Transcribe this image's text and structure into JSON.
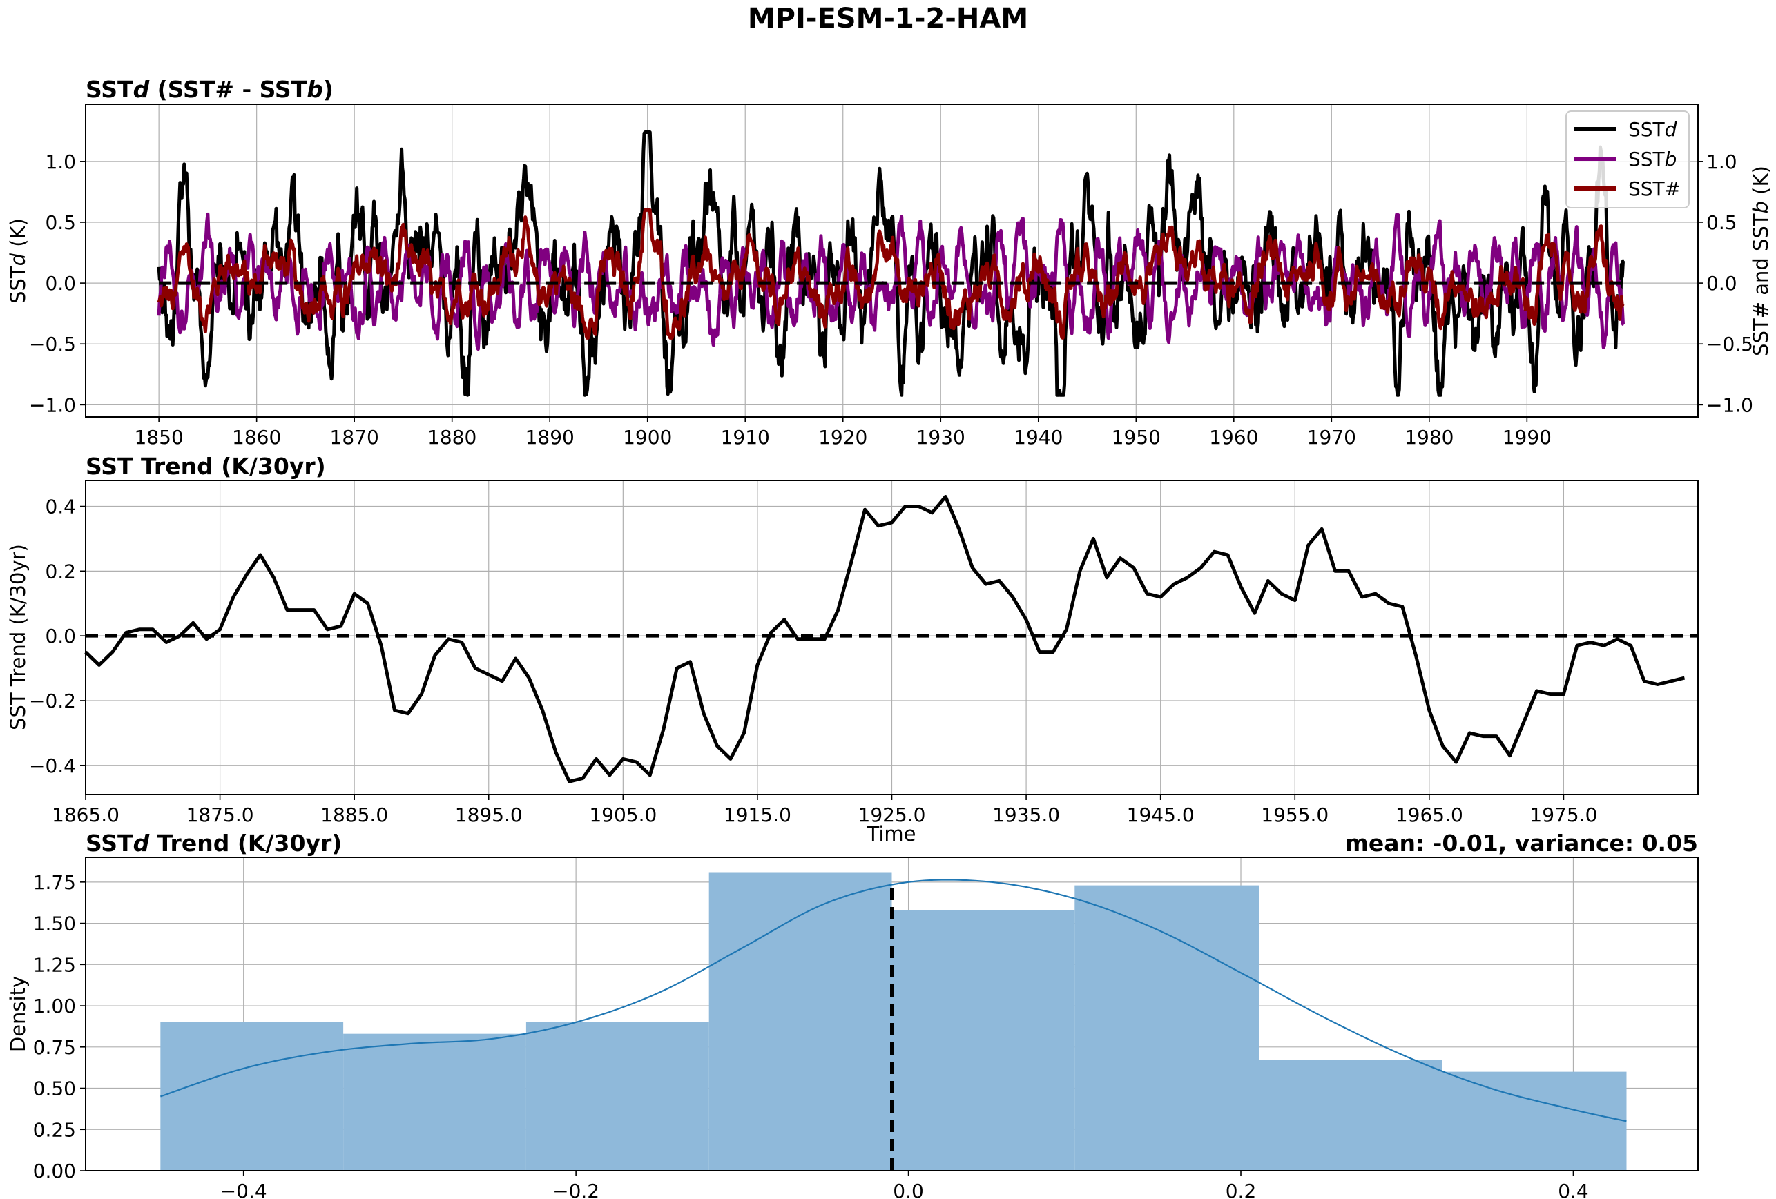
{
  "figure": {
    "title": "MPI-ESM-1-2-HAM"
  },
  "chart_data": [
    {
      "type": "line",
      "title": "SSTd (SST# - SSTb)",
      "title_parts": {
        "a": "SST",
        "b": "d",
        "c": " (SST# - SST",
        "d": "b",
        "e": ")"
      },
      "ylabel": "SSTd (K)",
      "ylabel_parts": {
        "a": "SST",
        "b": "d",
        "c": " (K)"
      },
      "ylabel_right": "SST# and SSTb (K)",
      "ylabel_right_parts": {
        "a": "SST# and SST",
        "b": "b",
        "c": " (K)"
      },
      "xlim": [
        1842.5,
        2007.5
      ],
      "ylim": [
        -1.1,
        1.47
      ],
      "xticks": [
        1850,
        1860,
        1870,
        1880,
        1890,
        1900,
        1910,
        1920,
        1930,
        1940,
        1950,
        1960,
        1970,
        1980,
        1990
      ],
      "yticks": [
        -1.0,
        -0.5,
        0.0,
        0.5,
        1.0
      ],
      "ytick_labels": [
        "−1.0",
        "−0.5",
        "0.0",
        "0.5",
        "1.0"
      ],
      "legend": {
        "placement": "top-right",
        "entries": [
          {
            "text": "SST",
            "italic": "d",
            "suffix": "",
            "color": "#000000"
          },
          {
            "text": "SST",
            "italic": "b",
            "suffix": "",
            "color": "#800080"
          },
          {
            "text": "SST#",
            "italic": "",
            "suffix": "",
            "color": "#8b0000"
          }
        ]
      },
      "x_start": 1850,
      "x_end": 1999.9,
      "series_note": "monthly series from 1850 to 2000",
      "peaks": [
        {
          "x": 1852.8,
          "y": 0.8
        },
        {
          "x": 1859.4,
          "y": 0.18
        },
        {
          "x": 1861.2,
          "y": 0.5
        },
        {
          "x": 1863.5,
          "y": 0.8
        },
        {
          "x": 1874.8,
          "y": 0.85
        },
        {
          "x": 1877.2,
          "y": 0.5
        },
        {
          "x": 1887.4,
          "y": 1.15
        },
        {
          "x": 1899.8,
          "y": 1.23
        },
        {
          "x": 1906.0,
          "y": 0.84
        },
        {
          "x": 1923.9,
          "y": 1.15
        },
        {
          "x": 1945.3,
          "y": 0.58
        },
        {
          "x": 1956.3,
          "y": 1.18
        },
        {
          "x": 1970.8,
          "y": 1.05
        },
        {
          "x": 1997.3,
          "y": 0.7
        }
      ],
      "troughs": [
        {
          "x": 1851.6,
          "y": -0.64
        },
        {
          "x": 1867.6,
          "y": -0.68
        },
        {
          "x": 1881.6,
          "y": -0.67
        },
        {
          "x": 1894.7,
          "y": -0.84
        },
        {
          "x": 1902.3,
          "y": -0.9
        },
        {
          "x": 1913.5,
          "y": -0.75
        },
        {
          "x": 1926.0,
          "y": -0.72
        },
        {
          "x": 1938.8,
          "y": -0.8
        },
        {
          "x": 1942.3,
          "y": -0.9
        },
        {
          "x": 1981.2,
          "y": -0.72
        },
        {
          "x": 1990.8,
          "y": -0.6
        }
      ]
    },
    {
      "type": "line",
      "title": "SST Trend (K/30yr)",
      "ylabel": "SST Trend (K/30yr)",
      "xlabel": "Time",
      "xlim": [
        1865.0,
        1985.0
      ],
      "ylim": [
        -0.49,
        0.48
      ],
      "xticks": [
        1865,
        1875,
        1885,
        1895,
        1905,
        1915,
        1925,
        1935,
        1945,
        1955,
        1965,
        1975
      ],
      "xtick_labels": [
        "1865.0",
        "1875.0",
        "1885.0",
        "1895.0",
        "1905.0",
        "1915.0",
        "1925.0",
        "1935.0",
        "1945.0",
        "1955.0",
        "1965.0",
        "1975.0"
      ],
      "yticks": [
        -0.4,
        -0.2,
        0.0,
        0.2,
        0.4
      ],
      "ytick_labels": [
        "−0.4",
        "−0.2",
        "0.0",
        "0.2",
        "0.4"
      ],
      "x": [
        1865,
        1866,
        1867,
        1868,
        1869,
        1870,
        1871,
        1872,
        1873,
        1874,
        1875,
        1876,
        1877,
        1878,
        1879,
        1880,
        1881,
        1882,
        1883,
        1884,
        1885,
        1886,
        1887,
        1888,
        1889,
        1890,
        1891,
        1892,
        1893,
        1894,
        1895,
        1896,
        1897,
        1898,
        1899,
        1900,
        1901,
        1902,
        1903,
        1904,
        1905,
        1906,
        1907,
        1908,
        1909,
        1910,
        1911,
        1912,
        1913,
        1914,
        1915,
        1916,
        1917,
        1918,
        1919,
        1920,
        1921,
        1922,
        1923,
        1924,
        1925,
        1926,
        1927,
        1928,
        1929,
        1930,
        1931,
        1932,
        1933,
        1934,
        1935,
        1936,
        1937,
        1938,
        1939,
        1940,
        1941,
        1942,
        1943,
        1944,
        1945,
        1946,
        1947,
        1948,
        1949,
        1950,
        1951,
        1952,
        1953,
        1954,
        1955,
        1956,
        1957,
        1958,
        1959,
        1960,
        1961,
        1962,
        1963,
        1964,
        1965,
        1966,
        1967,
        1968,
        1969,
        1970,
        1971,
        1972,
        1973,
        1974,
        1975,
        1976,
        1977,
        1978,
        1979,
        1980,
        1981,
        1982,
        1983,
        1984
      ],
      "values": [
        -0.05,
        -0.09,
        -0.05,
        0.01,
        0.02,
        0.02,
        -0.02,
        0.0,
        0.04,
        -0.01,
        0.02,
        0.12,
        0.19,
        0.25,
        0.18,
        0.08,
        0.08,
        0.08,
        0.02,
        0.03,
        0.13,
        0.1,
        -0.03,
        -0.23,
        -0.24,
        -0.18,
        -0.06,
        -0.01,
        -0.02,
        -0.1,
        -0.12,
        -0.14,
        -0.07,
        -0.13,
        -0.23,
        -0.36,
        -0.45,
        -0.44,
        -0.38,
        -0.43,
        -0.38,
        -0.39,
        -0.43,
        -0.29,
        -0.1,
        -0.08,
        -0.24,
        -0.34,
        -0.38,
        -0.3,
        -0.09,
        0.01,
        0.05,
        -0.01,
        -0.01,
        -0.01,
        0.08,
        0.23,
        0.39,
        0.34,
        0.35,
        0.4,
        0.4,
        0.38,
        0.43,
        0.33,
        0.21,
        0.16,
        0.17,
        0.12,
        0.05,
        -0.05,
        -0.05,
        0.02,
        0.2,
        0.3,
        0.18,
        0.24,
        0.21,
        0.13,
        0.12,
        0.16,
        0.18,
        0.21,
        0.26,
        0.25,
        0.15,
        0.07,
        0.17,
        0.13,
        0.11,
        0.28,
        0.33,
        0.2,
        0.2,
        0.12,
        0.13,
        0.1,
        0.09,
        -0.06,
        -0.23,
        -0.34,
        -0.39,
        -0.3,
        -0.31,
        -0.31,
        -0.37,
        -0.27,
        -0.17,
        -0.18,
        -0.18,
        -0.03,
        -0.02,
        -0.03,
        -0.01,
        -0.03,
        -0.14,
        -0.15,
        -0.14,
        -0.13
      ]
    },
    {
      "type": "histogram",
      "title": "SSTd Trend (K/30yr)",
      "title_parts": {
        "a": "SST",
        "b": "d",
        "c": " Trend (K/30yr)"
      },
      "subtitle_right": "mean: -0.01, variance: 0.05",
      "ylabel": "Density",
      "xlim": [
        -0.495,
        0.475
      ],
      "ylim": [
        0.0,
        1.9
      ],
      "xticks": [
        -0.4,
        -0.2,
        0.0,
        0.2,
        0.4
      ],
      "xtick_labels": [
        "−0.4",
        "−0.2",
        "0.0",
        "0.2",
        "0.4"
      ],
      "yticks": [
        0.0,
        0.25,
        0.5,
        0.75,
        1.0,
        1.25,
        1.5,
        1.75
      ],
      "ytick_labels": [
        "0.00",
        "0.25",
        "0.50",
        "0.75",
        "1.00",
        "1.25",
        "1.50",
        "1.75"
      ],
      "bin_edges": [
        -0.45,
        -0.34,
        -0.23,
        -0.12,
        -0.01,
        0.1,
        0.211,
        0.321,
        0.432
      ],
      "densities": [
        0.9,
        0.83,
        0.9,
        1.81,
        1.58,
        1.73,
        0.67,
        0.6
      ],
      "mean_line": -0.01,
      "bar_color": "#8fb9da",
      "kde_color": "#1f77b4",
      "kde": {
        "x": [
          -0.45,
          -0.4,
          -0.35,
          -0.3,
          -0.25,
          -0.2,
          -0.15,
          -0.1,
          -0.05,
          0.0,
          0.05,
          0.1,
          0.15,
          0.2,
          0.25,
          0.3,
          0.35,
          0.4,
          0.432
        ],
        "y": [
          0.45,
          0.62,
          0.72,
          0.77,
          0.8,
          0.9,
          1.08,
          1.35,
          1.62,
          1.75,
          1.75,
          1.65,
          1.46,
          1.2,
          0.93,
          0.69,
          0.5,
          0.37,
          0.3
        ]
      }
    }
  ]
}
